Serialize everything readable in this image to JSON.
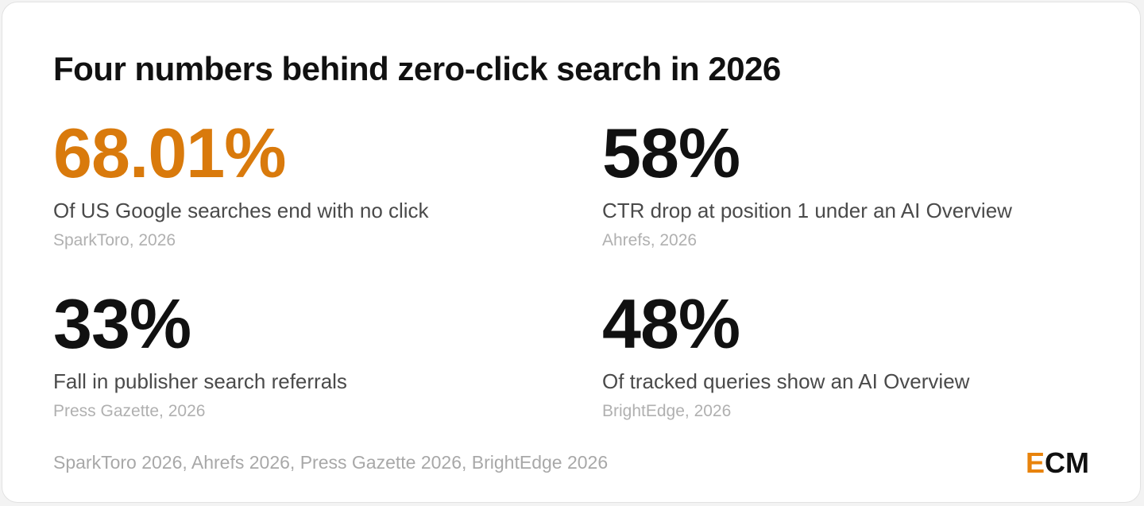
{
  "title": "Four numbers behind zero-click search in 2026",
  "accent_color": "#d97a0c",
  "stats": [
    {
      "value": "68.01%",
      "label": "Of US Google searches end with no click",
      "source": "SparkToro, 2026",
      "highlight": true
    },
    {
      "value": "58%",
      "label": "CTR drop at position 1 under an AI Overview",
      "source": "Ahrefs, 2026",
      "highlight": false
    },
    {
      "value": "33%",
      "label": "Fall in publisher search referrals",
      "source": "Press Gazette, 2026",
      "highlight": false
    },
    {
      "value": "48%",
      "label": "Of tracked queries show an AI Overview",
      "source": "BrightEdge, 2026",
      "highlight": false
    }
  ],
  "footer": {
    "sources": "SparkToro 2026, Ahrefs 2026, Press Gazette 2026, BrightEdge 2026"
  },
  "logo": {
    "first_letter": "E",
    "rest": "CM",
    "first_letter_color": "#e8830c"
  }
}
